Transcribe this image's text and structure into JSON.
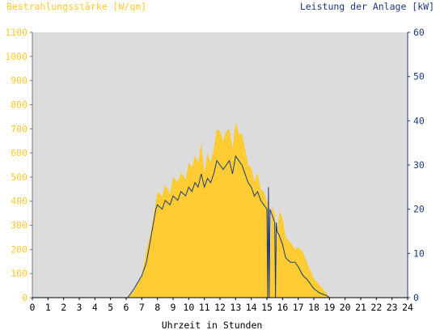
{
  "colors": {
    "irradiance": "#ffcc33",
    "power": "#1f3a7a",
    "plot_bg": "#dcdcdc",
    "x_axis_text": "#000000"
  },
  "chart_data": {
    "type": "area",
    "left_axis_title": "Bestrahlungsstärke [W/qm]",
    "right_axis_title": "Leistung der Anlage [kW]",
    "xlabel": "Uhrzeit in Stunden",
    "x_ticks": [
      "0",
      "1",
      "2",
      "3",
      "4",
      "5",
      "6",
      "7",
      "8",
      "9",
      "10",
      "11",
      "12",
      "13",
      "14",
      "15",
      "16",
      "17",
      "18",
      "19",
      "20",
      "21",
      "22",
      "23",
      "24"
    ],
    "y_left_ticks": [
      "0",
      "100",
      "200",
      "300",
      "400",
      "500",
      "600",
      "700",
      "800",
      "900",
      "1000",
      "1100"
    ],
    "y_right_ticks": [
      "0",
      "10",
      "20",
      "30",
      "40",
      "50",
      "60"
    ],
    "xlim": [
      0,
      24
    ],
    "ylim_left": [
      0,
      1100
    ],
    "ylim_right": [
      0,
      60
    ],
    "grid": false,
    "series": [
      {
        "name": "Bestrahlungsstärke",
        "axis": "left",
        "style": "area",
        "x": [
          0,
          6.1,
          6.5,
          7,
          7.3,
          7.6,
          7.9,
          8.0,
          8.3,
          8.5,
          8.8,
          9.0,
          9.3,
          9.5,
          9.8,
          10.0,
          10.2,
          10.4,
          10.6,
          10.8,
          11.0,
          11.2,
          11.4,
          11.6,
          11.8,
          12.0,
          12.2,
          12.4,
          12.6,
          12.8,
          13.0,
          13.2,
          13.4,
          13.6,
          13.8,
          14.0,
          14.2,
          14.4,
          14.6,
          14.8,
          15.0,
          15.1,
          15.2,
          15.3,
          15.5,
          15.6,
          15.8,
          16.0,
          16.2,
          16.5,
          16.8,
          17.0,
          17.3,
          17.6,
          18.0,
          18.4,
          18.8,
          19.0,
          24
        ],
        "values": [
          0,
          0,
          30,
          90,
          200,
          280,
          400,
          440,
          420,
          470,
          430,
          500,
          480,
          520,
          490,
          560,
          540,
          590,
          560,
          640,
          520,
          600,
          560,
          620,
          700,
          690,
          650,
          690,
          700,
          620,
          730,
          680,
          680,
          620,
          550,
          540,
          480,
          520,
          450,
          440,
          400,
          390,
          130,
          380,
          350,
          220,
          360,
          330,
          250,
          230,
          200,
          210,
          190,
          140,
          80,
          50,
          20,
          0,
          0
        ]
      },
      {
        "name": "Leistung der Anlage",
        "axis": "right",
        "style": "line",
        "x": [
          0,
          6.1,
          6.5,
          7,
          7.3,
          7.6,
          7.9,
          8.0,
          8.3,
          8.5,
          8.8,
          9.0,
          9.3,
          9.5,
          9.8,
          10.0,
          10.2,
          10.4,
          10.6,
          10.8,
          11.0,
          11.2,
          11.4,
          11.6,
          11.8,
          12.0,
          12.2,
          12.4,
          12.6,
          12.8,
          13.0,
          13.2,
          13.4,
          13.6,
          13.8,
          14.0,
          14.2,
          14.4,
          14.6,
          14.8,
          15.0,
          15.05,
          15.1,
          15.15,
          15.2,
          15.3,
          15.5,
          15.55,
          15.6,
          15.65,
          15.8,
          16.0,
          16.2,
          16.5,
          16.8,
          17.0,
          17.3,
          17.6,
          18.0,
          18.4,
          18.8,
          19.0,
          24
        ],
        "values": [
          0,
          0,
          2,
          5,
          8,
          14,
          20,
          21,
          20,
          22,
          21,
          23,
          22,
          24,
          23,
          25,
          24,
          26,
          25,
          28,
          25,
          27,
          26,
          28,
          31,
          30,
          29,
          30,
          31,
          28,
          32,
          31,
          30,
          28,
          26,
          25,
          23,
          24,
          22,
          21,
          20,
          0,
          25,
          0,
          20,
          19,
          17,
          0,
          17,
          15,
          14,
          12,
          9,
          8,
          8,
          7,
          5,
          4,
          2,
          1,
          0.5,
          0,
          0
        ]
      }
    ]
  }
}
